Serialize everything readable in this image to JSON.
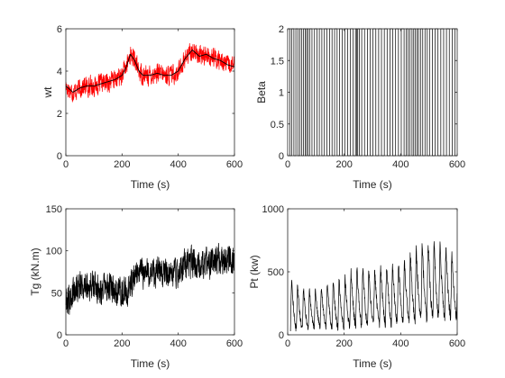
{
  "figure": {
    "background": "#ffffff"
  },
  "chart_data": [
    {
      "id": "wt",
      "type": "line",
      "xlabel": "Time (s)",
      "ylabel": "wt",
      "xlim": [
        0,
        600
      ],
      "ylim": [
        0,
        6
      ],
      "xticks": [
        0,
        200,
        400,
        600
      ],
      "yticks": [
        0,
        2,
        4,
        6
      ],
      "series": [
        {
          "color": "#ff0000",
          "signal": "noisy",
          "x": [
            0,
            25,
            50,
            75,
            100,
            125,
            150,
            175,
            200,
            215,
            230,
            245,
            260,
            275,
            300,
            325,
            350,
            375,
            400,
            425,
            450,
            475,
            500,
            525,
            550,
            575,
            600
          ],
          "y": [
            3.3,
            3.0,
            3.2,
            3.3,
            3.3,
            3.4,
            3.5,
            3.6,
            3.8,
            4.2,
            4.8,
            4.5,
            4.0,
            3.8,
            3.8,
            3.9,
            3.8,
            3.8,
            4.0,
            4.6,
            5.0,
            4.7,
            4.8,
            4.6,
            4.5,
            4.3,
            4.2
          ],
          "spread": 0.45
        },
        {
          "color": "#000000",
          "signal": "smooth",
          "x": [
            0,
            25,
            50,
            75,
            100,
            125,
            150,
            175,
            200,
            215,
            230,
            245,
            260,
            275,
            300,
            325,
            350,
            375,
            400,
            425,
            450,
            475,
            500,
            525,
            550,
            575,
            600
          ],
          "y": [
            3.3,
            3.0,
            3.2,
            3.3,
            3.3,
            3.4,
            3.5,
            3.6,
            3.8,
            4.2,
            4.8,
            4.5,
            4.0,
            3.8,
            3.8,
            3.9,
            3.8,
            3.8,
            4.0,
            4.6,
            5.0,
            4.7,
            4.8,
            4.6,
            4.5,
            4.3,
            4.2
          ]
        }
      ]
    },
    {
      "id": "beta",
      "type": "line",
      "xlabel": "Time (s)",
      "ylabel": "Beta",
      "xlim": [
        0,
        600
      ],
      "ylim": [
        0,
        2
      ],
      "xticks": [
        0,
        200,
        400,
        600
      ],
      "yticks": [
        0,
        0.5,
        1,
        1.5,
        2
      ],
      "series": [
        {
          "color": "#000000",
          "signal": "switching",
          "low": 0,
          "high": 2,
          "switch_times": [
            8,
            14,
            22,
            29,
            36,
            43,
            50,
            56,
            62,
            67,
            72,
            78,
            86,
            95,
            104,
            112,
            121,
            130,
            139,
            148,
            157,
            166,
            175,
            184,
            193,
            202,
            212,
            222,
            232,
            240,
            244,
            248,
            254,
            262,
            272,
            282,
            292,
            302,
            312,
            322,
            332,
            342,
            352,
            362,
            372,
            382,
            392,
            402,
            412,
            420,
            426,
            432,
            440,
            446,
            452,
            458,
            463,
            470,
            478,
            486,
            494,
            502,
            512,
            522,
            532,
            542,
            552,
            562,
            572,
            582,
            592
          ]
        }
      ]
    },
    {
      "id": "tg",
      "type": "line",
      "xlabel": "Time (s)",
      "ylabel": "Tg (kN.m)",
      "xlim": [
        0,
        600
      ],
      "ylim": [
        0,
        150
      ],
      "xticks": [
        0,
        200,
        400,
        600
      ],
      "yticks": [
        0,
        50,
        100,
        150
      ],
      "series": [
        {
          "color": "#000000",
          "signal": "noisy",
          "x": [
            0,
            20,
            25,
            50,
            75,
            100,
            125,
            150,
            175,
            200,
            220,
            240,
            260,
            280,
            300,
            325,
            350,
            375,
            400,
            425,
            450,
            475,
            500,
            525,
            550,
            575,
            600
          ],
          "y": [
            43,
            43,
            55,
            58,
            60,
            58,
            55,
            55,
            55,
            52,
            50,
            70,
            75,
            72,
            75,
            75,
            73,
            72,
            75,
            82,
            85,
            85,
            85,
            87,
            88,
            88,
            90
          ],
          "spread": 18
        }
      ]
    },
    {
      "id": "pt",
      "type": "line",
      "xlabel": "Time (s)",
      "ylabel": "Pt (kw)",
      "xlim": [
        0,
        600
      ],
      "ylim": [
        0,
        1000
      ],
      "xticks": [
        0,
        200,
        400,
        600
      ],
      "yticks": [
        0,
        500,
        1000
      ],
      "series": [
        {
          "color": "#000000",
          "signal": "oscillating",
          "period": 21,
          "x": [
            0,
            50,
            100,
            150,
            200,
            250,
            300,
            350,
            400,
            450,
            500,
            550,
            600
          ],
          "peaks": [
            460,
            380,
            360,
            420,
            460,
            560,
            520,
            570,
            600,
            680,
            760,
            720,
            640
          ],
          "troughs": [
            40,
            50,
            60,
            60,
            60,
            80,
            80,
            90,
            100,
            120,
            140,
            140,
            140
          ]
        }
      ]
    }
  ]
}
